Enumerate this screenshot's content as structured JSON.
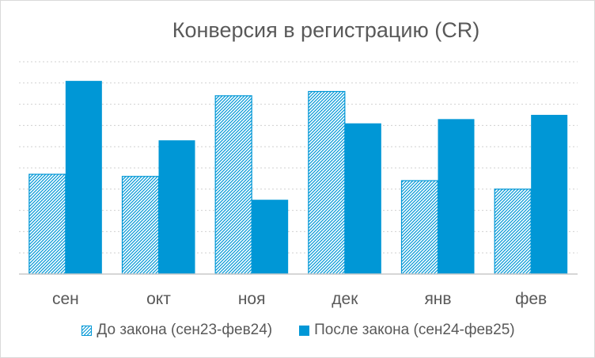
{
  "chart_data": {
    "type": "bar",
    "title": "Конверсия в регистрацию (CR)",
    "categories": [
      "сен",
      "окт",
      "ноя",
      "дек",
      "янв",
      "фев"
    ],
    "ylim": [
      0,
      10
    ],
    "grid": true,
    "legend_position": "bottom",
    "series": [
      {
        "name": "До закона (сен23-фев24)",
        "values": [
          4.7,
          4.6,
          8.4,
          8.6,
          4.4,
          4.0
        ],
        "color": "#0097D6",
        "pattern": "hatched"
      },
      {
        "name": "После закона (сен24-фев25)",
        "values": [
          9.1,
          6.3,
          3.5,
          7.1,
          7.3,
          7.5
        ],
        "color": "#0097D6",
        "pattern": "solid"
      }
    ]
  }
}
